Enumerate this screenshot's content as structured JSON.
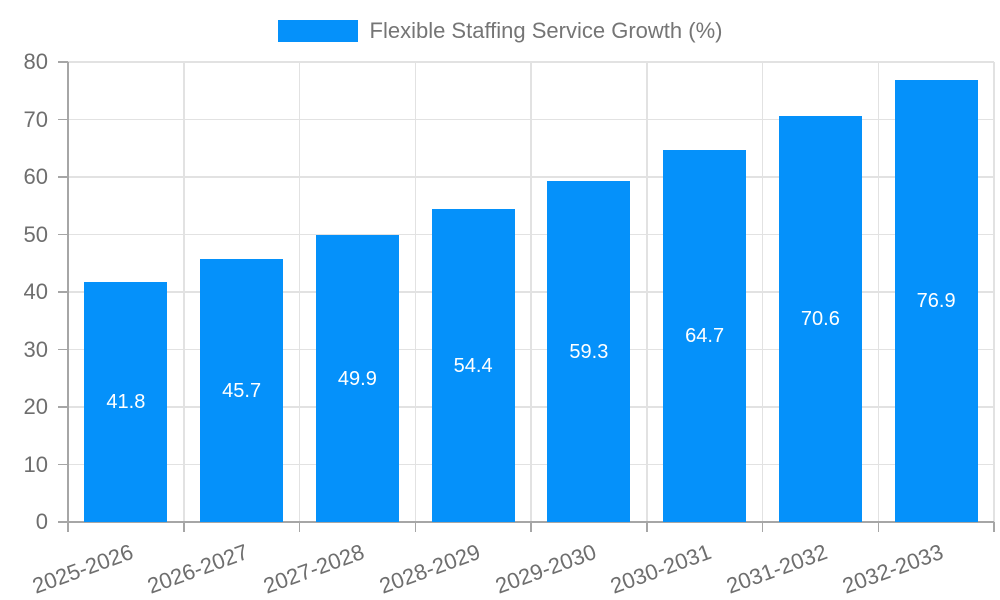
{
  "legend": {
    "label": "Flexible Staffing Service Growth (%)"
  },
  "chart_data": {
    "type": "bar",
    "title": "Flexible Staffing Service Growth (%)",
    "categories": [
      "2025-2026",
      "2026-2027",
      "2027-2028",
      "2028-2029",
      "2029-2030",
      "2030-2031",
      "2031-2032",
      "2032-2033"
    ],
    "values": [
      41.8,
      45.7,
      49.9,
      54.4,
      59.3,
      64.7,
      70.6,
      76.9
    ],
    "value_labels": [
      "41.8",
      "45.7",
      "49.9",
      "54.4",
      "59.3",
      "64.7",
      "70.6",
      "76.9"
    ],
    "xlabel": "",
    "ylabel": "",
    "ylim": [
      0,
      80
    ],
    "yticks": [
      0,
      10,
      20,
      30,
      40,
      50,
      60,
      70,
      80
    ],
    "grid": true,
    "legend_position": "top-center",
    "colors": {
      "bar": "#0591fa",
      "value_label": "#ffffff",
      "gridline": "#e2e2e2",
      "axis": "#a6a6a6",
      "tick_label": "#6e6e6e",
      "legend_text": "#757575",
      "background": "#ffffff"
    }
  }
}
